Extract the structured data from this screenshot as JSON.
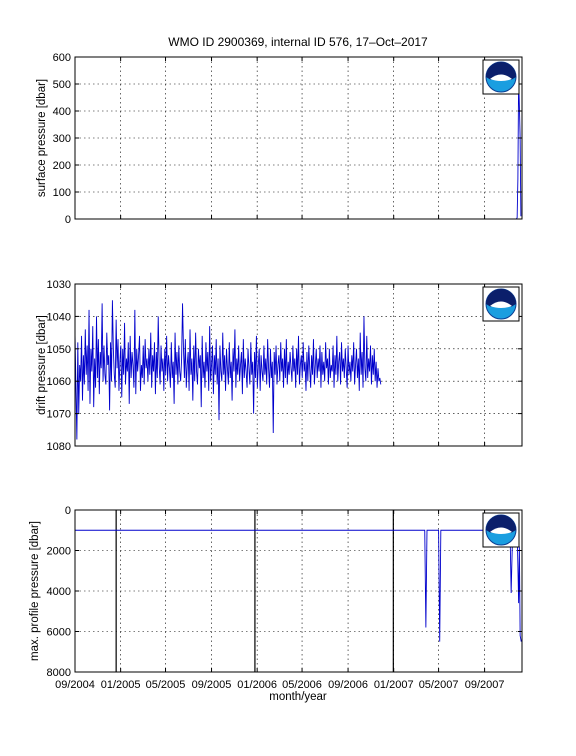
{
  "title": "WMO ID 2900369, internal ID 576, 17–Oct–2017",
  "xlabel": "month/year",
  "x_ticks": [
    "09/2004",
    "01/2005",
    "05/2005",
    "09/2005",
    "01/2006",
    "05/2006",
    "09/2006",
    "01/2007",
    "05/2007",
    "09/2007"
  ],
  "colors": {
    "series": "#0000cc",
    "grid": "#000000",
    "axes": "#000000",
    "black_lines": "#000000"
  },
  "logo": {
    "icon": "noaa-logo-icon"
  },
  "chart_data": [
    {
      "type": "line",
      "ylabel": "surface pressure [dbar]",
      "yticks": [
        "0",
        "100",
        "200",
        "300",
        "400",
        "500",
        "600"
      ],
      "ylim": [
        0,
        600
      ],
      "xlim": [
        "2004-09-01",
        "2007-12-10"
      ],
      "series": [
        {
          "x": [
            "2004-09-01",
            "2007-11-25",
            "2007-11-27",
            "2007-11-29",
            "2007-12-01",
            "2007-12-03",
            "2007-12-05",
            "2007-12-07"
          ],
          "values": [
            0,
            0,
            5,
            150,
            530,
            420,
            300,
            10
          ]
        }
      ]
    },
    {
      "type": "line",
      "ylabel": "drift pressure [dbar]",
      "yticks": [
        "1030",
        "1040",
        "1050",
        "1060",
        "1070",
        "1080"
      ],
      "ylim": [
        1030,
        1080
      ],
      "reversed": true,
      "xlim": [
        "2004-09-01",
        "2007-12-10"
      ],
      "series": [
        {
          "x_start": "2004-09-01",
          "x_step_days": 2.5,
          "values": [
            1045,
            1062,
            1078,
            1048,
            1070,
            1055,
            1060,
            1046,
            1066,
            1052,
            1061,
            1044,
            1058,
            1049,
            1063,
            1038,
            1067,
            1050,
            1057,
            1043,
            1068,
            1053,
            1062,
            1040,
            1059,
            1047,
            1064,
            1051,
            1056,
            1036,
            1060,
            1049,
            1058,
            1061,
            1045,
            1055,
            1052,
            1069,
            1048,
            1060,
            1035,
            1050,
            1058,
            1062,
            1041,
            1056,
            1047,
            1063,
            1054,
            1049,
            1065,
            1050,
            1058,
            1042,
            1061,
            1053,
            1057,
            1048,
            1067,
            1046,
            1059,
            1051,
            1055,
            1062,
            1038,
            1064,
            1050,
            1057,
            1052,
            1046,
            1063,
            1055,
            1059,
            1049,
            1061,
            1047,
            1056,
            1053,
            1060,
            1050,
            1058,
            1045,
            1062,
            1052,
            1057,
            1048,
            1064,
            1051,
            1059,
            1040,
            1055,
            1061,
            1049,
            1057,
            1053,
            1063,
            1050,
            1058,
            1046,
            1060,
            1052,
            1056,
            1062,
            1048,
            1059,
            1054,
            1067,
            1045,
            1058,
            1051,
            1061,
            1049,
            1057,
            1060,
            1053,
            1036,
            1050,
            1059,
            1047,
            1062,
            1055,
            1051,
            1063,
            1044,
            1058,
            1053,
            1066,
            1049,
            1060,
            1045,
            1057,
            1061,
            1050,
            1056,
            1052,
            1068,
            1046,
            1059,
            1054,
            1062,
            1048,
            1057,
            1051,
            1063,
            1043,
            1060,
            1055,
            1049,
            1064,
            1052,
            1058,
            1047,
            1061,
            1053,
            1072,
            1049,
            1057,
            1060,
            1045,
            1058,
            1052,
            1063,
            1050,
            1056,
            1061,
            1048,
            1059,
            1054,
            1066,
            1050,
            1057,
            1044,
            1062,
            1053,
            1058,
            1049,
            1060,
            1055,
            1051,
            1064,
            1047,
            1059,
            1053,
            1057,
            1062,
            1050,
            1056,
            1061,
            1048,
            1058,
            1054,
            1070,
            1051,
            1059,
            1046,
            1062,
            1055,
            1050,
            1063,
            1052,
            1057,
            1060,
            1049,
            1058,
            1053,
            1061,
            1047,
            1056,
            1062,
            1050,
            1059,
            1054,
            1076,
            1051,
            1058,
            1049,
            1061,
            1055,
            1052,
            1060,
            1048,
            1057,
            1053,
            1062,
            1050,
            1059,
            1047,
            1061,
            1054,
            1058,
            1051,
            1056,
            1060,
            1049,
            1057,
            1053,
            1062,
            1050,
            1058,
            1046,
            1061,
            1055,
            1052,
            1059,
            1048,
            1057,
            1054,
            1063,
            1051,
            1060,
            1049,
            1056,
            1062,
            1052,
            1058,
            1047,
            1061,
            1055,
            1050,
            1059,
            1053,
            1057,
            1049,
            1062,
            1051,
            1058,
            1054,
            1060,
            1048,
            1056,
            1053,
            1061,
            1050,
            1059,
            1055,
            1057,
            1049,
            1062,
            1052,
            1058,
            1046,
            1060,
            1054,
            1051,
            1061,
            1048,
            1057,
            1053,
            1059,
            1050,
            1056,
            1062,
            1049,
            1058,
            1054,
            1060,
            1052,
            1057,
            1048,
            1061,
            1055,
            1050,
            1059,
            1053,
            1063,
            1045,
            1058,
            1051,
            1062,
            1040,
            1056,
            1060,
            1046,
            1059,
            1053,
            1057,
            1049,
            1061,
            1052,
            1058,
            1050,
            1060,
            1054,
            1062,
            1056,
            1060,
            1059,
            1061
          ]
        }
      ]
    },
    {
      "type": "line",
      "ylabel": "max. profile pressure [dbar]",
      "yticks": [
        "0",
        "2000",
        "4000",
        "6000",
        "8000"
      ],
      "ylim": [
        0,
        8000
      ],
      "reversed": true,
      "xlim": [
        "2004-09-01",
        "2007-12-10"
      ],
      "series": [
        {
          "x": [
            "2004-09-01",
            "2007-03-25",
            "2007-03-28",
            "2007-03-31",
            "2007-05-01",
            "2007-05-04",
            "2007-05-07",
            "2007-11-08",
            "2007-11-11",
            "2007-11-14",
            "2007-11-28",
            "2007-12-01",
            "2007-12-03",
            "2007-12-05",
            "2007-12-08"
          ],
          "values": [
            1000,
            1000,
            5800,
            1000,
            1000,
            6500,
            1000,
            1000,
            4100,
            1800,
            1800,
            4600,
            1800,
            6200,
            6500
          ]
        }
      ],
      "vertical_black_lines_x": [
        "2004-12-20",
        "2005-12-26",
        "2006-12-31"
      ]
    }
  ]
}
